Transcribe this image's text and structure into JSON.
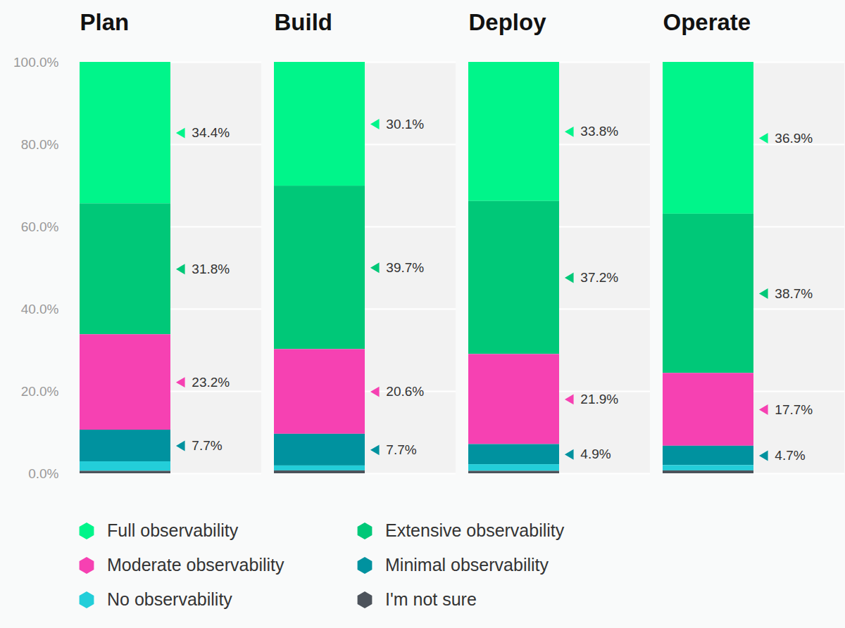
{
  "chart_data": {
    "type": "bar",
    "stacked": true,
    "data_labels": true,
    "grid": true,
    "legend": "bottom",
    "categories": [
      "Plan",
      "Build",
      "Deploy",
      "Operate"
    ],
    "ylim": [
      0,
      100
    ],
    "yticks": [
      {
        "value": 0,
        "label": "0.0%"
      },
      {
        "value": 20,
        "label": "20.0%"
      },
      {
        "value": 40,
        "label": "40.0%"
      },
      {
        "value": 60,
        "label": "60.0%"
      },
      {
        "value": 80,
        "label": "80.0%"
      },
      {
        "value": 100,
        "label": "100.0%"
      }
    ],
    "series": [
      {
        "name": "Full observability",
        "color": "#00f58a",
        "values": [
          34.4,
          30.1,
          33.8,
          36.9
        ],
        "value_labels": [
          "34.4%",
          "30.1%",
          "33.8%",
          "36.9%"
        ]
      },
      {
        "name": "Extensive observability",
        "color": "#00c878",
        "values": [
          31.8,
          39.7,
          37.2,
          38.7
        ],
        "value_labels": [
          "31.8%",
          "39.7%",
          "37.2%",
          "38.7%"
        ]
      },
      {
        "name": "Moderate observability",
        "color": "#f641b2",
        "values": [
          23.2,
          20.6,
          21.9,
          17.7
        ],
        "value_labels": [
          "23.2%",
          "20.6%",
          "21.9%",
          "17.7%"
        ]
      },
      {
        "name": "Minimal observability",
        "color": "#00929f",
        "values": [
          7.7,
          7.7,
          4.9,
          4.7
        ],
        "value_labels": [
          "7.7%",
          "7.7%",
          "4.9%",
          "4.7%"
        ]
      },
      {
        "name": "No observability",
        "color": "#23ced9",
        "values": [
          2.3,
          1.2,
          1.6,
          1.3
        ]
      },
      {
        "name": "I'm not sure",
        "color": "#4d535b",
        "values": [
          0.6,
          0.7,
          0.6,
          0.7
        ]
      }
    ]
  }
}
